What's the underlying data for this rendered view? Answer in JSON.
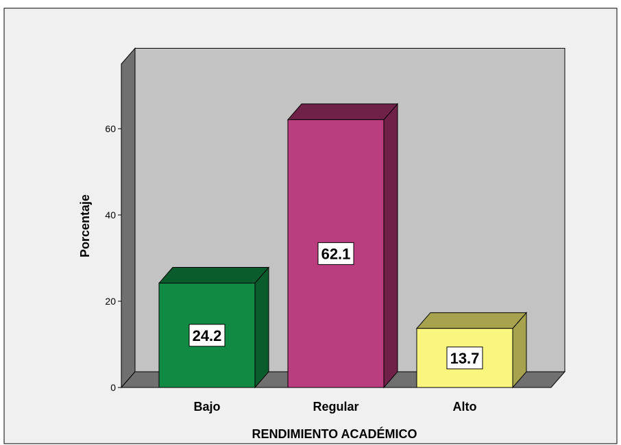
{
  "chart_data": {
    "type": "bar",
    "title": "",
    "xlabel": "RENDIMIENTO ACADÉMICO",
    "ylabel": "Porcentaje",
    "categories": [
      "Bajo",
      "Regular",
      "Alto"
    ],
    "values": [
      24.2,
      62.1,
      13.7
    ],
    "data_labels": [
      "24.2",
      "62.1",
      "13.7"
    ],
    "yticks": [
      0,
      20,
      40,
      60
    ],
    "ylim": [
      0,
      75
    ],
    "grid": false,
    "legend": "none",
    "style": "3d-bars",
    "colors": {
      "bars": [
        "#118a44",
        "#b93d7f",
        "#f9f57e"
      ],
      "bar_tops": [
        "#0b5c2d",
        "#6f2148",
        "#a6a24d"
      ],
      "bar_sides": [
        "#0b5c2d",
        "#6f2148",
        "#a6a24d"
      ],
      "back_wall": "#c3c3c3",
      "side_wall": "#707070",
      "floor": "#707070",
      "background": "#f0f0f0"
    }
  }
}
